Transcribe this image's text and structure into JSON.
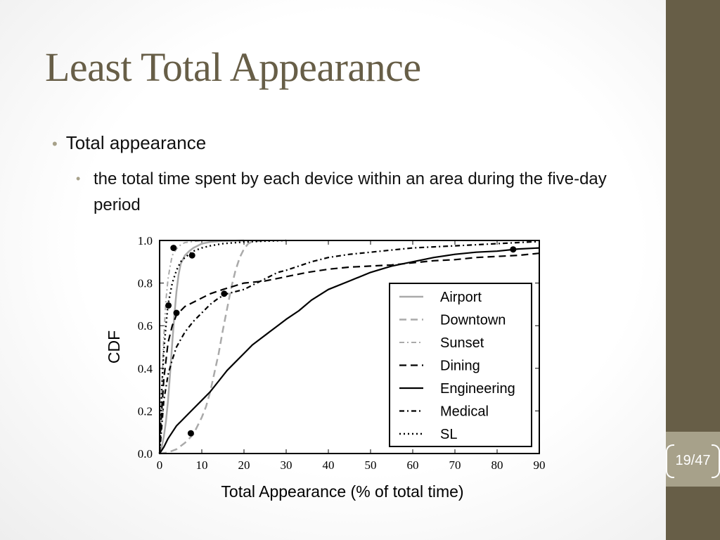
{
  "slide": {
    "title": "Least Total Appearance",
    "bullets": [
      {
        "text": "Total appearance",
        "level": 1
      },
      {
        "text": "the total time spent by each device within an area during the five-day period",
        "level": 2
      }
    ],
    "page_number": "19/47",
    "colors": {
      "accent": "#675e47",
      "page_box": "#a7a18a",
      "bullet_dot": "#a7a18a"
    }
  },
  "chart_data": {
    "type": "line",
    "xlabel": "Total Appearance (% of total time)",
    "ylabel": "CDF",
    "xlim": [
      0,
      90
    ],
    "ylim": [
      0,
      1
    ],
    "xticks": [
      "0",
      "10",
      "20",
      "30",
      "40",
      "50",
      "60",
      "70",
      "80",
      "90"
    ],
    "yticks": [
      "0.0",
      "0.2",
      "0.4",
      "0.6",
      "0.8",
      "1.0"
    ],
    "legend_position": "lower-right",
    "series": [
      {
        "name": "Airport",
        "style": "solid-gray",
        "x": [
          0,
          0.5,
          1,
          1.5,
          2,
          2.5,
          3,
          3.5,
          4,
          4.5,
          5,
          6,
          7,
          8,
          9,
          10,
          12,
          15,
          20
        ],
        "y": [
          0,
          0.03,
          0.08,
          0.15,
          0.25,
          0.38,
          0.52,
          0.65,
          0.76,
          0.84,
          0.89,
          0.93,
          0.95,
          0.965,
          0.975,
          0.985,
          0.993,
          0.998,
          1.0
        ]
      },
      {
        "name": "Downtown",
        "style": "dashed-gray",
        "x": [
          0,
          2,
          4,
          6,
          8,
          10,
          11,
          12,
          13,
          14,
          15,
          16,
          17,
          18,
          19,
          20,
          21,
          22,
          25
        ],
        "y": [
          0,
          0.005,
          0.02,
          0.05,
          0.09,
          0.17,
          0.22,
          0.29,
          0.38,
          0.47,
          0.58,
          0.68,
          0.78,
          0.86,
          0.92,
          0.96,
          0.985,
          0.995,
          1.0
        ]
      },
      {
        "name": "Sunset",
        "style": "dashdot-gray",
        "x": [
          0,
          0.3,
          0.6,
          1,
          1.5,
          2,
          2.5,
          3,
          4,
          5,
          6,
          8,
          10
        ],
        "y": [
          0,
          0.15,
          0.35,
          0.55,
          0.72,
          0.82,
          0.88,
          0.93,
          0.96,
          0.98,
          0.99,
          0.995,
          1.0
        ]
      },
      {
        "name": "Dining",
        "style": "dashed-black",
        "x": [
          0,
          0.5,
          1,
          2,
          3,
          4,
          5,
          6,
          8,
          10,
          12,
          15,
          20,
          25,
          30,
          35,
          40,
          45,
          50,
          55,
          60,
          65,
          70,
          75,
          80,
          85,
          90
        ],
        "y": [
          0,
          0.2,
          0.35,
          0.52,
          0.6,
          0.65,
          0.67,
          0.69,
          0.71,
          0.73,
          0.75,
          0.77,
          0.8,
          0.81,
          0.83,
          0.85,
          0.865,
          0.875,
          0.88,
          0.885,
          0.895,
          0.905,
          0.91,
          0.92,
          0.925,
          0.93,
          0.94
        ]
      },
      {
        "name": "Engineering",
        "style": "solid-black",
        "x": [
          0,
          1,
          2,
          3,
          4,
          5,
          6,
          8,
          10,
          12,
          14,
          16,
          18,
          20,
          22,
          24,
          26,
          28,
          30,
          33,
          36,
          40,
          45,
          50,
          55,
          60,
          65,
          70,
          75,
          80,
          85,
          90
        ],
        "y": [
          0,
          0.03,
          0.07,
          0.1,
          0.13,
          0.15,
          0.17,
          0.21,
          0.25,
          0.29,
          0.34,
          0.39,
          0.43,
          0.47,
          0.51,
          0.54,
          0.57,
          0.6,
          0.63,
          0.67,
          0.72,
          0.77,
          0.81,
          0.85,
          0.88,
          0.9,
          0.92,
          0.935,
          0.945,
          0.95,
          0.96,
          0.965
        ]
      },
      {
        "name": "Medical",
        "style": "dashdot-black",
        "x": [
          0,
          1,
          2,
          3,
          4,
          6,
          8,
          10,
          12,
          14,
          16,
          18,
          20,
          22,
          24,
          26,
          28,
          30,
          33,
          36,
          40,
          45,
          50,
          55,
          60,
          65,
          70,
          75,
          80,
          85,
          90
        ],
        "y": [
          0,
          0.25,
          0.37,
          0.44,
          0.5,
          0.57,
          0.62,
          0.66,
          0.7,
          0.73,
          0.75,
          0.76,
          0.77,
          0.79,
          0.81,
          0.83,
          0.85,
          0.86,
          0.88,
          0.9,
          0.92,
          0.935,
          0.945,
          0.955,
          0.965,
          0.97,
          0.975,
          0.98,
          0.985,
          0.99,
          0.995
        ]
      },
      {
        "name": "SL",
        "style": "dotted-black",
        "x": [
          0,
          0.5,
          1,
          1.5,
          2,
          3,
          4,
          5,
          6,
          7,
          8,
          10,
          12,
          15,
          20,
          25,
          30
        ],
        "y": [
          0,
          0.3,
          0.48,
          0.6,
          0.7,
          0.8,
          0.86,
          0.9,
          0.92,
          0.935,
          0.95,
          0.965,
          0.975,
          0.985,
          0.993,
          0.997,
          1.0
        ]
      }
    ],
    "markers": [
      {
        "x": 3.3,
        "y": 0.965
      },
      {
        "x": 7.7,
        "y": 0.93
      },
      {
        "x": 2.1,
        "y": 0.695
      },
      {
        "x": 4.0,
        "y": 0.66
      },
      {
        "x": 15.3,
        "y": 0.75
      },
      {
        "x": 7.4,
        "y": 0.095
      },
      {
        "x": 83.8,
        "y": 0.958
      }
    ]
  }
}
